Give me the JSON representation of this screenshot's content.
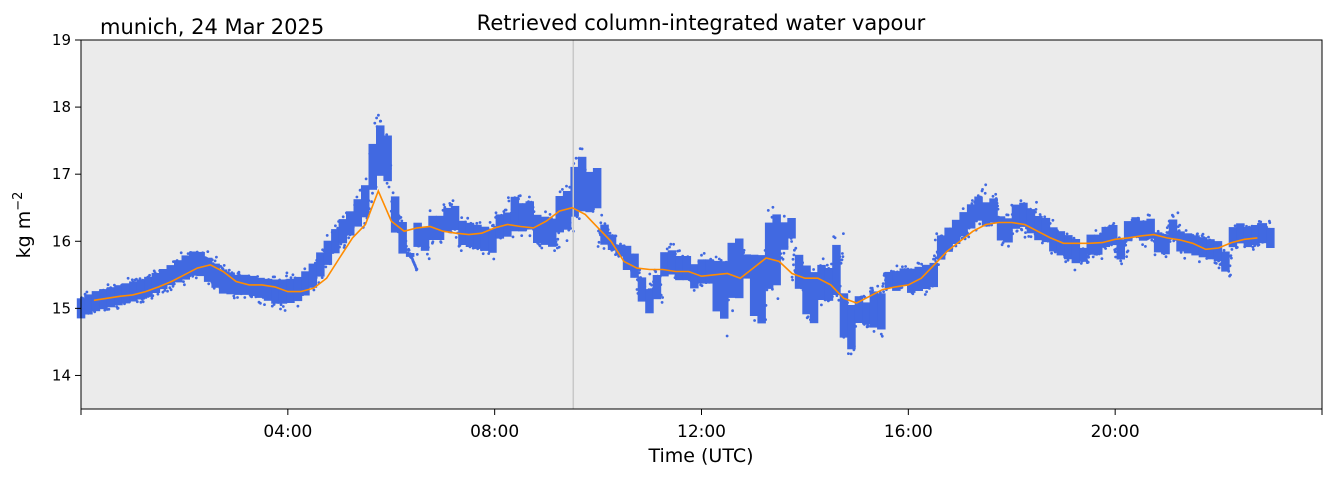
{
  "chart_data": {
    "type": "scatter",
    "title": "Retrieved column-integrated water vapour",
    "subtitle": "munich, 24 Mar 2025",
    "xlabel": "Time (UTC)",
    "ylabel_base": "kg m",
    "ylabel_sup": "−2",
    "xlim_hours": [
      0,
      24
    ],
    "ylim": [
      13.5,
      19.0
    ],
    "x_ticks": [
      {
        "hour": 4,
        "label": "04:00"
      },
      {
        "hour": 8,
        "label": "08:00"
      },
      {
        "hour": 12,
        "label": "12:00"
      },
      {
        "hour": 16,
        "label": "16:00"
      },
      {
        "hour": 20,
        "label": "20:00"
      }
    ],
    "y_ticks": [
      14,
      15,
      16,
      17,
      18,
      19
    ],
    "vertical_marker_hour": 9.52,
    "background_color": "#ebebeb",
    "series": [
      {
        "kind": "scatter",
        "color": "#4169e1",
        "x": [
          0.0,
          0.25,
          0.5,
          0.75,
          1.0,
          1.25,
          1.5,
          1.75,
          2.0,
          2.25,
          2.5,
          2.75,
          3.0,
          3.25,
          3.5,
          3.75,
          4.0,
          4.25,
          4.5,
          4.75,
          5.0,
          5.25,
          5.5,
          5.6,
          5.7,
          5.8,
          6.0,
          6.25,
          6.5,
          6.75,
          7.0,
          7.25,
          7.5,
          7.75,
          8.0,
          8.25,
          8.5,
          8.75,
          9.0,
          9.25,
          9.5,
          9.75,
          10.0,
          10.25,
          10.5,
          10.75,
          11.0,
          11.25,
          11.5,
          11.75,
          12.0,
          12.25,
          12.5,
          12.75,
          13.0,
          13.25,
          13.5,
          13.75,
          14.0,
          14.25,
          14.5,
          14.75,
          15.0,
          15.25,
          15.5,
          15.75,
          16.0,
          16.25,
          16.5,
          16.75,
          17.0,
          17.25,
          17.5,
          17.75,
          18.0,
          18.25,
          18.5,
          18.75,
          19.0,
          19.25,
          19.5,
          19.75,
          20.0,
          20.25,
          20.5,
          20.75,
          21.0,
          21.25,
          21.5,
          21.75,
          22.0,
          22.25,
          22.5,
          22.75,
          23.0
        ],
        "y": [
          15.0,
          15.1,
          15.15,
          15.2,
          15.25,
          15.3,
          15.4,
          15.5,
          15.6,
          15.7,
          15.55,
          15.4,
          15.35,
          15.35,
          15.3,
          15.25,
          15.25,
          15.3,
          15.5,
          15.8,
          16.1,
          16.3,
          16.6,
          17.5,
          17.3,
          16.7,
          16.3,
          16.2,
          16.2,
          16.25,
          16.2,
          16.15,
          16.1,
          16.15,
          16.25,
          16.3,
          16.25,
          16.2,
          16.3,
          16.5,
          16.6,
          16.4,
          16.2,
          16.0,
          15.7,
          15.55,
          15.6,
          15.6,
          15.55,
          15.55,
          15.45,
          15.5,
          15.55,
          15.45,
          15.6,
          15.8,
          15.7,
          15.5,
          15.45,
          15.5,
          15.2,
          15.1,
          15.05,
          15.2,
          15.3,
          15.35,
          15.4,
          15.6,
          15.8,
          16.0,
          16.2,
          16.3,
          16.25,
          16.3,
          16.3,
          16.25,
          16.15,
          16.05,
          15.95,
          15.95,
          16.0,
          15.95,
          16.05,
          16.1,
          16.05,
          16.1,
          16.05,
          16.0,
          15.95,
          15.85,
          15.95,
          16.0,
          16.05,
          16.05,
          16.05
        ],
        "spread": [
          0.25,
          0.25,
          0.25,
          0.25,
          0.25,
          0.25,
          0.25,
          0.25,
          0.3,
          0.3,
          0.3,
          0.3,
          0.25,
          0.25,
          0.25,
          0.3,
          0.3,
          0.3,
          0.3,
          0.3,
          0.3,
          0.3,
          0.4,
          0.7,
          0.6,
          0.5,
          0.3,
          0.3,
          0.3,
          0.3,
          0.3,
          0.3,
          0.3,
          0.3,
          0.35,
          0.35,
          0.35,
          0.35,
          0.4,
          0.5,
          0.5,
          0.4,
          0.3,
          0.3,
          0.3,
          0.3,
          0.3,
          0.3,
          0.3,
          0.3,
          0.45,
          0.55,
          0.45,
          0.6,
          0.7,
          0.55,
          0.5,
          0.55,
          0.5,
          0.55,
          0.55,
          0.45,
          0.45,
          0.35,
          0.3,
          0.3,
          0.3,
          0.3,
          0.3,
          0.3,
          0.3,
          0.3,
          0.3,
          0.3,
          0.3,
          0.3,
          0.3,
          0.3,
          0.25,
          0.25,
          0.25,
          0.25,
          0.25,
          0.25,
          0.25,
          0.25,
          0.25,
          0.25,
          0.25,
          0.25,
          0.25,
          0.25,
          0.25,
          0.25,
          0.25
        ]
      },
      {
        "kind": "line",
        "color": "#ff8c00",
        "x": [
          0.25,
          0.5,
          0.75,
          1.0,
          1.25,
          1.5,
          1.75,
          2.0,
          2.25,
          2.5,
          2.75,
          3.0,
          3.25,
          3.5,
          3.75,
          4.0,
          4.25,
          4.5,
          4.75,
          5.0,
          5.25,
          5.5,
          5.75,
          6.0,
          6.25,
          6.5,
          6.75,
          7.0,
          7.25,
          7.5,
          7.75,
          8.0,
          8.25,
          8.5,
          8.75,
          9.0,
          9.25,
          9.5,
          9.75,
          10.0,
          10.25,
          10.5,
          10.75,
          11.0,
          11.25,
          11.5,
          11.75,
          12.0,
          12.25,
          12.5,
          12.75,
          13.0,
          13.25,
          13.5,
          13.75,
          14.0,
          14.25,
          14.5,
          14.75,
          15.0,
          15.25,
          15.5,
          15.75,
          16.0,
          16.25,
          16.5,
          16.75,
          17.0,
          17.25,
          17.5,
          17.75,
          18.0,
          18.25,
          18.5,
          18.75,
          19.0,
          19.25,
          19.5,
          19.75,
          20.0,
          20.25,
          20.5,
          20.75,
          21.0,
          21.25,
          21.5,
          21.75,
          22.0,
          22.25,
          22.5,
          22.75
        ],
        "y": [
          15.12,
          15.15,
          15.18,
          15.2,
          15.25,
          15.32,
          15.4,
          15.5,
          15.6,
          15.65,
          15.55,
          15.4,
          15.35,
          15.35,
          15.32,
          15.25,
          15.25,
          15.3,
          15.45,
          15.75,
          16.05,
          16.25,
          16.75,
          16.3,
          16.15,
          16.2,
          16.22,
          16.15,
          16.12,
          16.1,
          16.12,
          16.2,
          16.25,
          16.22,
          16.2,
          16.3,
          16.45,
          16.5,
          16.4,
          16.2,
          16.0,
          15.7,
          15.6,
          15.58,
          15.58,
          15.55,
          15.55,
          15.48,
          15.5,
          15.52,
          15.45,
          15.6,
          15.75,
          15.7,
          15.52,
          15.45,
          15.45,
          15.35,
          15.15,
          15.08,
          15.18,
          15.28,
          15.32,
          15.35,
          15.45,
          15.65,
          15.85,
          16.0,
          16.15,
          16.25,
          16.28,
          16.28,
          16.25,
          16.15,
          16.05,
          15.97,
          15.97,
          15.97,
          15.98,
          16.03,
          16.05,
          16.08,
          16.1,
          16.05,
          16.02,
          15.97,
          15.88,
          15.9,
          15.98,
          16.03,
          16.05
        ]
      }
    ]
  }
}
